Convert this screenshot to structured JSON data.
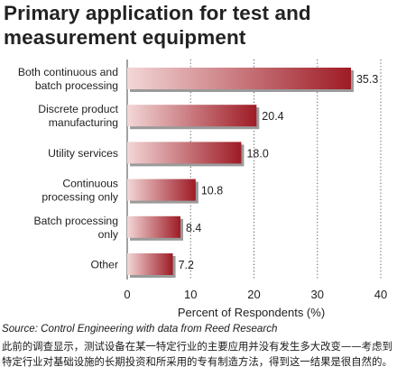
{
  "chart_data": {
    "type": "bar",
    "orientation": "horizontal",
    "title": "Primary application for test and\nmeasurement equipment",
    "categories": [
      [
        "Both continuous and",
        "batch processing"
      ],
      [
        "Discrete product",
        "manufacturing"
      ],
      [
        "Utility services"
      ],
      [
        "Continuous",
        "processing only"
      ],
      [
        "Batch processing",
        "only"
      ],
      [
        "Other"
      ]
    ],
    "values": [
      35.3,
      20.4,
      18.0,
      10.8,
      8.4,
      7.2
    ],
    "value_labels": [
      "35.3",
      "20.4",
      "18.0",
      "10.8",
      "8.4",
      "7.2"
    ],
    "xlabel": "Percent of Respondents (%)",
    "ylabel": "",
    "xlim": [
      0,
      40
    ],
    "xticks": [
      0,
      10,
      20,
      30,
      40
    ],
    "grid": "vertical dotted",
    "bar_gradient": [
      "#f3d7d7",
      "#9e1b25"
    ],
    "bar_shadow_color": "#9a9a9a"
  },
  "source": "Source: Control Engineering with data from Reed Research",
  "caption": "此前的调查显示，测试设备在某一特定行业的主要应用并没有发生多大改变——考虑到特定行业对基础设施的长期投资和所采用的专有制造方法，得到这一结果是很自然的。"
}
